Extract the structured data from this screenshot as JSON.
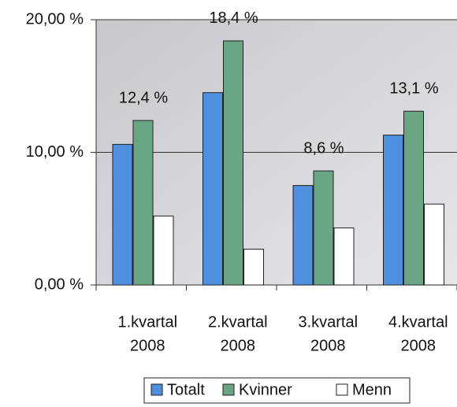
{
  "chart_data": {
    "type": "bar",
    "categories": [
      [
        "1.kvartal",
        "2008"
      ],
      [
        "2.kvartal",
        "2008"
      ],
      [
        "3.kvartal",
        "2008"
      ],
      [
        "4.kvartal",
        "2008"
      ]
    ],
    "series": [
      {
        "name": "Totalt",
        "color": "#4f8fe0",
        "values": [
          10.6,
          14.5,
          7.5,
          11.3
        ]
      },
      {
        "name": "Kvinner",
        "color": "#6aa584",
        "values": [
          12.4,
          18.4,
          8.6,
          13.1
        ],
        "value_labels": [
          "12,4 %",
          "18,4 %",
          "8,6 %",
          "13,1 %"
        ]
      },
      {
        "name": "Menn",
        "color": "#ffffff",
        "values": [
          5.2,
          2.7,
          4.3,
          6.1
        ]
      }
    ],
    "ylim": [
      0,
      20
    ],
    "yticks": [
      {
        "value": 0,
        "label": "0,00 %"
      },
      {
        "value": 10,
        "label": "10,00 %"
      },
      {
        "value": 20,
        "label": "20,00 %"
      }
    ],
    "grid": true
  }
}
